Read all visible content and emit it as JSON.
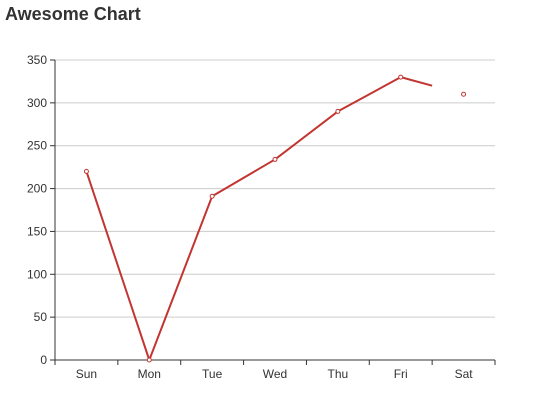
{
  "chart_data": {
    "type": "line",
    "title": "Awesome Chart",
    "categories": [
      "Sun",
      "Mon",
      "Tue",
      "Wed",
      "Thu",
      "Fri",
      "Sat"
    ],
    "series": [
      {
        "values": [
          220,
          0,
          191,
          234,
          290,
          330,
          310
        ],
        "color": "#c23531"
      }
    ],
    "ylim": [
      0,
      350
    ],
    "yticks": [
      0,
      50,
      100,
      150,
      200,
      250,
      300,
      350
    ],
    "grid": true,
    "xlabel": "",
    "ylabel": ""
  }
}
